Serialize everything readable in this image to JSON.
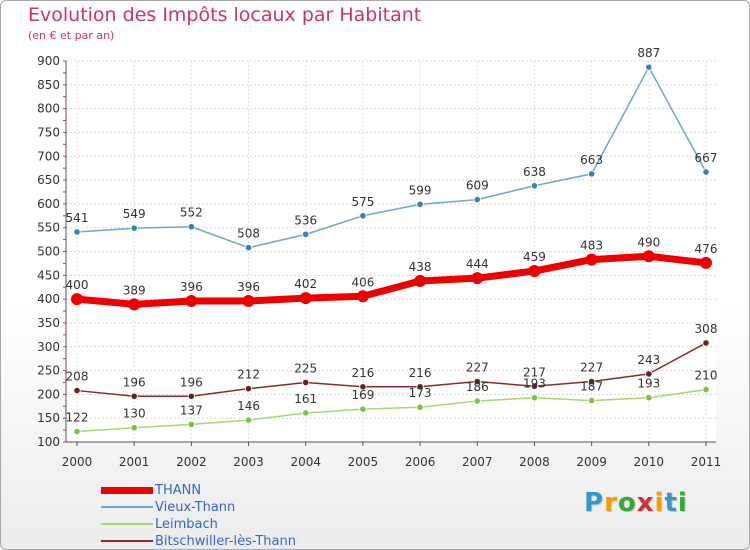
{
  "title": "Evolution des Impôts locaux par Habitant",
  "subtitle": "(en € et par an)",
  "logo": {
    "text": "Proxiti",
    "colors": [
      "#3399cc",
      "#ff9900",
      "#33aa33",
      "#cc3333",
      "#ff9900",
      "#3399cc",
      "#33aa33"
    ]
  },
  "chart_data": {
    "type": "line",
    "title": "Evolution des Impôts locaux par Habitant",
    "subtitle": "(en € et par an)",
    "x": [
      "2000",
      "2001",
      "2002",
      "2003",
      "2004",
      "2005",
      "2006",
      "2007",
      "2008",
      "2009",
      "2010",
      "2011"
    ],
    "ylim": [
      100,
      900
    ],
    "yticks": [
      100,
      150,
      200,
      250,
      300,
      350,
      400,
      450,
      500,
      550,
      600,
      650,
      700,
      750,
      800,
      850,
      900
    ],
    "grid": true,
    "legend_position": "bottom-left",
    "series": [
      {
        "name": "THANN",
        "color": "#ee0000",
        "values": [
          400,
          389,
          396,
          396,
          402,
          406,
          438,
          444,
          459,
          483,
          490,
          476
        ]
      },
      {
        "name": "Vieux-Thann",
        "color": "#6ca6d4",
        "point_color": "#3a7fbe",
        "values": [
          541,
          549,
          552,
          508,
          536,
          575,
          599,
          609,
          638,
          663,
          887,
          667
        ]
      },
      {
        "name": "Leimbach",
        "color": "#a6d96a",
        "point_color": "#7cc242",
        "values": [
          122,
          130,
          137,
          146,
          161,
          169,
          173,
          186,
          193,
          187,
          193,
          210
        ]
      },
      {
        "name": "Bitschwiller-lès-Thann",
        "color": "#8c2a2a",
        "point_color": "#6b1f1f",
        "values": [
          208,
          196,
          196,
          212,
          225,
          216,
          216,
          227,
          217,
          227,
          243,
          308
        ]
      }
    ]
  }
}
